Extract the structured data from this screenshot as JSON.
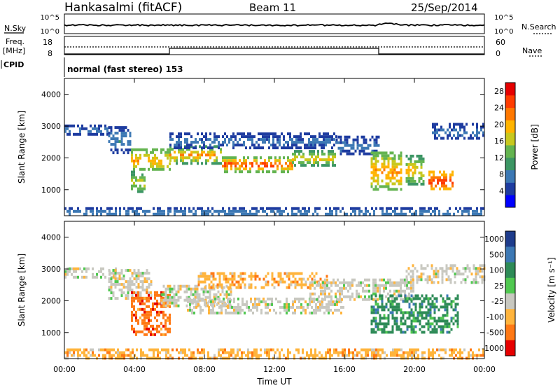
{
  "header": {
    "station": "Hankasalmi (fitACF)",
    "beam": "Beam 11",
    "date": "25/Sep/2014"
  },
  "labels": {
    "nsky": "N.Sky",
    "nsearch": "N.Search",
    "freq_top": "Freq.",
    "freq_unit": "[MHz]",
    "nave": "Nave",
    "cpid": "CPID",
    "cpid_value": "normal (fast stereo) 153",
    "noise_ticks_left": [
      "10^5",
      "10^0"
    ],
    "noise_ticks_right": [
      "10^5",
      "10^0"
    ],
    "freq_ticks": [
      "18",
      "8"
    ],
    "nave_ticks": [
      "60",
      "0"
    ]
  },
  "chart_data": [
    {
      "type": "heatmap",
      "name": "power",
      "ylabel": "Slant Range [km]",
      "ylim": [
        180,
        4500
      ],
      "yticks": [
        "4000",
        "3000",
        "2000",
        "1000"
      ],
      "xlim": [
        0,
        24
      ],
      "colorbar": {
        "label": "Power [dB]",
        "ticks": [
          "28",
          "24",
          "20",
          "16",
          "12",
          "8",
          "4"
        ],
        "range": [
          0,
          30
        ],
        "colors": [
          "#0000ff",
          "#1e3ca0",
          "#3c78b4",
          "#3c9664",
          "#64b450",
          "#c8c81e",
          "#ffb400",
          "#ff7800",
          "#ff3c00",
          "#e60000"
        ]
      },
      "bands": [
        {
          "t0": 0.0,
          "t1": 2.5,
          "r0": 2750,
          "r1": 3050,
          "v0": 4,
          "v1": 8
        },
        {
          "t0": 2.5,
          "t1": 3.8,
          "r0": 2200,
          "r1": 3000,
          "v0": 4,
          "v1": 10
        },
        {
          "t0": 3.8,
          "t1": 6.0,
          "r0": 1600,
          "r1": 2300,
          "v0": 12,
          "v1": 22
        },
        {
          "t0": 3.8,
          "t1": 4.6,
          "r0": 900,
          "r1": 1600,
          "v0": 10,
          "v1": 18
        },
        {
          "t0": 6.0,
          "t1": 9.0,
          "r0": 1850,
          "r1": 2400,
          "v0": 10,
          "v1": 24
        },
        {
          "t0": 9.0,
          "t1": 13.0,
          "r0": 1600,
          "r1": 2050,
          "v0": 14,
          "v1": 28
        },
        {
          "t0": 13.0,
          "t1": 15.5,
          "r0": 1800,
          "r1": 2250,
          "v0": 10,
          "v1": 22
        },
        {
          "t0": 6.0,
          "t1": 15.5,
          "r0": 2300,
          "r1": 2800,
          "v0": 4,
          "v1": 8
        },
        {
          "t0": 15.5,
          "t1": 18.0,
          "r0": 2100,
          "r1": 2700,
          "v0": 4,
          "v1": 8
        },
        {
          "t0": 17.5,
          "t1": 19.2,
          "r0": 1000,
          "r1": 2200,
          "v0": 12,
          "v1": 24
        },
        {
          "t0": 19.5,
          "t1": 20.5,
          "r0": 1200,
          "r1": 2100,
          "v0": 10,
          "v1": 22
        },
        {
          "t0": 20.8,
          "t1": 22.2,
          "r0": 1000,
          "r1": 1600,
          "v0": 18,
          "v1": 28
        },
        {
          "t0": 21.0,
          "t1": 24.0,
          "r0": 2600,
          "r1": 3100,
          "v0": 4,
          "v1": 8
        },
        {
          "t0": 0.0,
          "t1": 24.0,
          "r0": 200,
          "r1": 450,
          "v0": 4,
          "v1": 10
        }
      ]
    },
    {
      "type": "heatmap",
      "name": "velocity",
      "ylabel": "Slant Range [km]",
      "xlabel": "Time UT",
      "xticks": [
        "00:00",
        "04:00",
        "08:00",
        "12:00",
        "16:00",
        "20:00",
        "00:00"
      ],
      "ylim": [
        180,
        4500
      ],
      "yticks": [
        "4000",
        "3000",
        "2000",
        "1000"
      ],
      "xlim": [
        0,
        24
      ],
      "colorbar": {
        "label": "Velocity [m s⁻¹]",
        "ticks": [
          "1000",
          "500",
          "100",
          "25",
          "-25",
          "-100",
          "-500",
          "-1000"
        ],
        "colors": [
          "#1e3c8c",
          "#3c78b4",
          "#2e8b57",
          "#50c850",
          "#c8c8c0",
          "#ffb43c",
          "#ff7814",
          "#e60000"
        ]
      },
      "bands": [
        {
          "t0": 0.0,
          "t1": 3.0,
          "r0": 2700,
          "r1": 3050,
          "c": 4
        },
        {
          "t0": 2.5,
          "t1": 5.0,
          "r0": 2100,
          "r1": 3000,
          "c": 4
        },
        {
          "t0": 3.8,
          "t1": 6.0,
          "r0": 900,
          "r1": 2300,
          "c": 6
        },
        {
          "t0": 5.5,
          "t1": 9.5,
          "r0": 1800,
          "r1": 2500,
          "c": 4
        },
        {
          "t0": 7.0,
          "t1": 16.0,
          "r0": 1600,
          "r1": 2100,
          "c": 4
        },
        {
          "t0": 7.5,
          "t1": 15.0,
          "r0": 2450,
          "r1": 2900,
          "c": 5
        },
        {
          "t0": 14.0,
          "t1": 20.0,
          "r0": 2000,
          "r1": 2700,
          "c": 4
        },
        {
          "t0": 17.5,
          "t1": 22.5,
          "r0": 1000,
          "r1": 2200,
          "c": 2
        },
        {
          "t0": 19.5,
          "t1": 24.0,
          "r0": 2600,
          "r1": 3150,
          "c": 4
        },
        {
          "t0": 0.0,
          "t1": 24.0,
          "r0": 200,
          "r1": 500,
          "c": 5
        }
      ]
    }
  ]
}
